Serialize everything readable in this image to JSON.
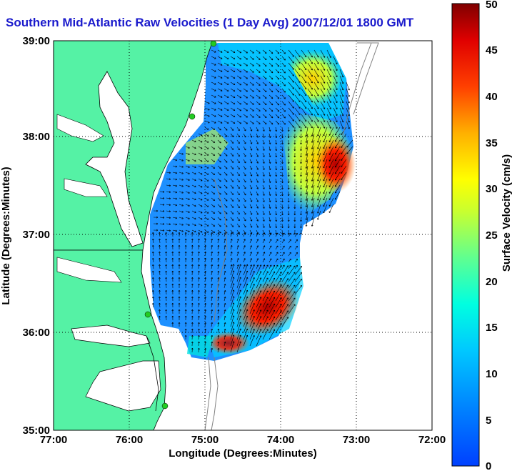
{
  "title": "Southern Mid-Atlantic Raw Velocities (1 Day Avg) 2007/12/01 1800 GMT",
  "x_axis": {
    "label": "Longitude (Degrees:Minutes)",
    "ticks": [
      "77:00",
      "76:00",
      "75:00",
      "74:00",
      "73:00",
      "72:00"
    ]
  },
  "y_axis": {
    "label": "Latitude (Degrees:Minutes)",
    "ticks": [
      "39:00",
      "38:00",
      "37:00",
      "36:00",
      "35:00"
    ]
  },
  "colorbar": {
    "label": "Surface Velocity (cm/s)",
    "ticks": [
      "0",
      "5",
      "10",
      "15",
      "20",
      "25",
      "30",
      "35",
      "40",
      "45",
      "50"
    ],
    "min": 0,
    "max": 50,
    "colormap": "jet"
  },
  "colors": {
    "land": "#55f2a5",
    "title": "#1a1acc",
    "station_marker": "#22cc22"
  },
  "map": {
    "lon_range": [
      -77,
      -72
    ],
    "lat_range": [
      35,
      39
    ],
    "grid": "dotted"
  }
}
